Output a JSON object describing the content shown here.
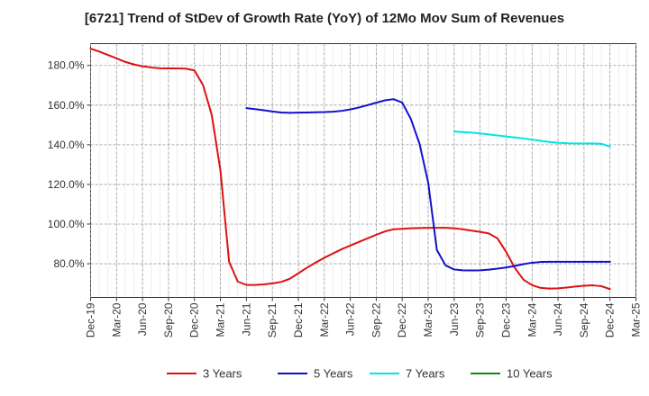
{
  "chart_data": {
    "type": "line",
    "title": "[6721]  Trend of StDev of Growth Rate (YoY) of 12Mo Mov Sum of Revenues",
    "xlabel": "",
    "ylabel": "",
    "ylim": [
      63,
      191
    ],
    "yticks": [
      80,
      100,
      120,
      140,
      160,
      180
    ],
    "ytick_format": "{v}.0%",
    "xlim": [
      "2019-12",
      "2025-03"
    ],
    "xticks": [
      "Dec-19",
      "Mar-20",
      "Jun-20",
      "Sep-20",
      "Dec-20",
      "Mar-21",
      "Jun-21",
      "Sep-21",
      "Dec-21",
      "Mar-22",
      "Jun-22",
      "Sep-22",
      "Dec-22",
      "Mar-23",
      "Jun-23",
      "Sep-23",
      "Dec-23",
      "Mar-24",
      "Jun-24",
      "Sep-24",
      "Dec-24",
      "Mar-25"
    ],
    "grid": true,
    "legend_position": "bottom",
    "series": [
      {
        "name": "3 Years",
        "color": "#dd1111",
        "points": [
          [
            "2019-12",
            188.5
          ],
          [
            "2020-01",
            187.0
          ],
          [
            "2020-02",
            185.3
          ],
          [
            "2020-03",
            183.6
          ],
          [
            "2020-04",
            181.8
          ],
          [
            "2020-05",
            180.5
          ],
          [
            "2020-06",
            179.6
          ],
          [
            "2020-07",
            179.0
          ],
          [
            "2020-08",
            178.6
          ],
          [
            "2020-09",
            178.5
          ],
          [
            "2020-10",
            178.5
          ],
          [
            "2020-11",
            178.4
          ],
          [
            "2020-12",
            177.5
          ],
          [
            "2021-01",
            170.0
          ],
          [
            "2021-02",
            155.0
          ],
          [
            "2021-03",
            127.0
          ],
          [
            "2021-04",
            81.0
          ],
          [
            "2021-05",
            71.0
          ],
          [
            "2021-06",
            69.3
          ],
          [
            "2021-07",
            69.3
          ],
          [
            "2021-08",
            69.6
          ],
          [
            "2021-09",
            70.1
          ],
          [
            "2021-10",
            70.8
          ],
          [
            "2021-11",
            72.4
          ],
          [
            "2021-12",
            75.2
          ],
          [
            "2022-01",
            78.0
          ],
          [
            "2022-02",
            80.6
          ],
          [
            "2022-03",
            83.0
          ],
          [
            "2022-04",
            85.2
          ],
          [
            "2022-05",
            87.3
          ],
          [
            "2022-06",
            89.2
          ],
          [
            "2022-07",
            91.0
          ],
          [
            "2022-08",
            92.8
          ],
          [
            "2022-09",
            94.6
          ],
          [
            "2022-10",
            96.3
          ],
          [
            "2022-11",
            97.4
          ],
          [
            "2022-12",
            97.6
          ],
          [
            "2023-01",
            97.9
          ],
          [
            "2023-02",
            98.0
          ],
          [
            "2023-03",
            98.1
          ],
          [
            "2023-04",
            98.1
          ],
          [
            "2023-05",
            98.1
          ],
          [
            "2023-06",
            97.9
          ],
          [
            "2023-07",
            97.4
          ],
          [
            "2023-08",
            96.7
          ],
          [
            "2023-09",
            96.1
          ],
          [
            "2023-10",
            95.3
          ],
          [
            "2023-11",
            92.8
          ],
          [
            "2023-12",
            86.0
          ],
          [
            "2024-01",
            78.0
          ],
          [
            "2024-02",
            72.0
          ],
          [
            "2024-03",
            69.2
          ],
          [
            "2024-04",
            67.8
          ],
          [
            "2024-05",
            67.5
          ],
          [
            "2024-06",
            67.6
          ],
          [
            "2024-07",
            68.0
          ],
          [
            "2024-08",
            68.5
          ],
          [
            "2024-09",
            68.9
          ],
          [
            "2024-10",
            69.1
          ],
          [
            "2024-11",
            68.7
          ],
          [
            "2024-12",
            67.2
          ]
        ]
      },
      {
        "name": "5 Years",
        "color": "#1111cc",
        "points": [
          [
            "2021-06",
            158.5
          ],
          [
            "2021-07",
            158.0
          ],
          [
            "2021-08",
            157.4
          ],
          [
            "2021-09",
            156.8
          ],
          [
            "2021-10",
            156.3
          ],
          [
            "2021-11",
            156.1
          ],
          [
            "2021-12",
            156.2
          ],
          [
            "2022-01",
            156.3
          ],
          [
            "2022-02",
            156.4
          ],
          [
            "2022-03",
            156.5
          ],
          [
            "2022-04",
            156.7
          ],
          [
            "2022-05",
            157.1
          ],
          [
            "2022-06",
            157.8
          ],
          [
            "2022-07",
            158.8
          ],
          [
            "2022-08",
            160.0
          ],
          [
            "2022-09",
            161.2
          ],
          [
            "2022-10",
            162.4
          ],
          [
            "2022-11",
            163.0
          ],
          [
            "2022-12",
            161.3
          ],
          [
            "2023-01",
            153.0
          ],
          [
            "2023-02",
            140.5
          ],
          [
            "2023-03",
            121.0
          ],
          [
            "2023-04",
            87.0
          ],
          [
            "2023-05",
            79.2
          ],
          [
            "2023-06",
            77.1
          ],
          [
            "2023-07",
            76.7
          ],
          [
            "2023-08",
            76.6
          ],
          [
            "2023-09",
            76.7
          ],
          [
            "2023-10",
            77.0
          ],
          [
            "2023-11",
            77.5
          ],
          [
            "2023-12",
            78.1
          ],
          [
            "2024-01",
            78.9
          ],
          [
            "2024-02",
            79.8
          ],
          [
            "2024-03",
            80.5
          ],
          [
            "2024-04",
            80.9
          ],
          [
            "2024-05",
            81.0
          ],
          [
            "2024-06",
            81.0
          ],
          [
            "2024-07",
            81.0
          ],
          [
            "2024-08",
            81.0
          ],
          [
            "2024-09",
            81.0
          ],
          [
            "2024-10",
            81.0
          ],
          [
            "2024-11",
            81.0
          ],
          [
            "2024-12",
            81.0
          ]
        ]
      },
      {
        "name": "7 Years",
        "color": "#00e5e5",
        "points": [
          [
            "2023-06",
            146.7
          ],
          [
            "2023-07",
            146.4
          ],
          [
            "2023-08",
            146.1
          ],
          [
            "2023-09",
            145.7
          ],
          [
            "2023-10",
            145.2
          ],
          [
            "2023-11",
            144.7
          ],
          [
            "2023-12",
            144.2
          ],
          [
            "2024-01",
            143.7
          ],
          [
            "2024-02",
            143.2
          ],
          [
            "2024-03",
            142.6
          ],
          [
            "2024-04",
            142.0
          ],
          [
            "2024-05",
            141.4
          ],
          [
            "2024-06",
            141.0
          ],
          [
            "2024-07",
            140.8
          ],
          [
            "2024-08",
            140.7
          ],
          [
            "2024-09",
            140.7
          ],
          [
            "2024-10",
            140.7
          ],
          [
            "2024-11",
            140.5
          ],
          [
            "2024-12",
            139.1
          ]
        ]
      },
      {
        "name": "10 Years",
        "color": "#118811",
        "points": []
      }
    ]
  }
}
